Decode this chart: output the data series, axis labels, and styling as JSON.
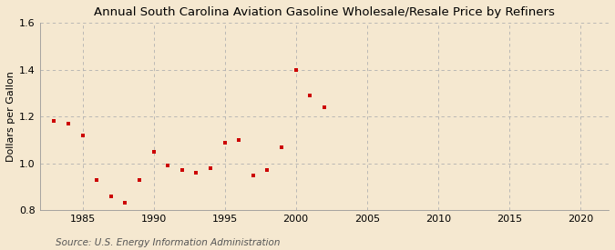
{
  "title": "Annual South Carolina Aviation Gasoline Wholesale/Resale Price by Refiners",
  "ylabel": "Dollars per Gallon",
  "source": "Source: U.S. Energy Information Administration",
  "background_color": "#f5e8d0",
  "marker_color": "#cc0000",
  "years": [
    1983,
    1984,
    1985,
    1986,
    1987,
    1988,
    1989,
    1990,
    1991,
    1992,
    1993,
    1994,
    1995,
    1996,
    1997,
    1998,
    1999,
    2000,
    2001,
    2002
  ],
  "values": [
    1.18,
    1.17,
    1.12,
    0.93,
    0.86,
    0.83,
    0.93,
    1.05,
    0.99,
    0.97,
    0.96,
    0.98,
    1.09,
    1.1,
    0.95,
    0.97,
    1.07,
    1.4,
    1.29,
    1.24
  ],
  "xlim": [
    1982,
    2022
  ],
  "ylim": [
    0.8,
    1.6
  ],
  "xticks": [
    1985,
    1990,
    1995,
    2000,
    2005,
    2010,
    2015,
    2020
  ],
  "yticks": [
    0.8,
    1.0,
    1.2,
    1.4,
    1.6
  ],
  "title_fontsize": 9.5,
  "label_fontsize": 8,
  "tick_fontsize": 8,
  "source_fontsize": 7.5
}
